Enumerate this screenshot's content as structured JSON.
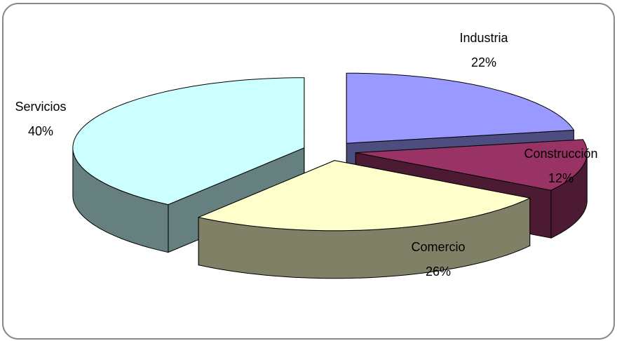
{
  "chart_data": {
    "type": "pie3d",
    "categories": [
      "Industria",
      "Construcción",
      "Comercio",
      "Servicios"
    ],
    "values": [
      22,
      12,
      26,
      40
    ],
    "value_labels": [
      "22%",
      "12%",
      "26%",
      "40%"
    ],
    "colors": [
      "#9999ff",
      "#993366",
      "#ffffcc",
      "#ccffff"
    ],
    "side_colors": [
      "#4d4d80",
      "#4d1a33",
      "#808066",
      "#668080"
    ]
  }
}
